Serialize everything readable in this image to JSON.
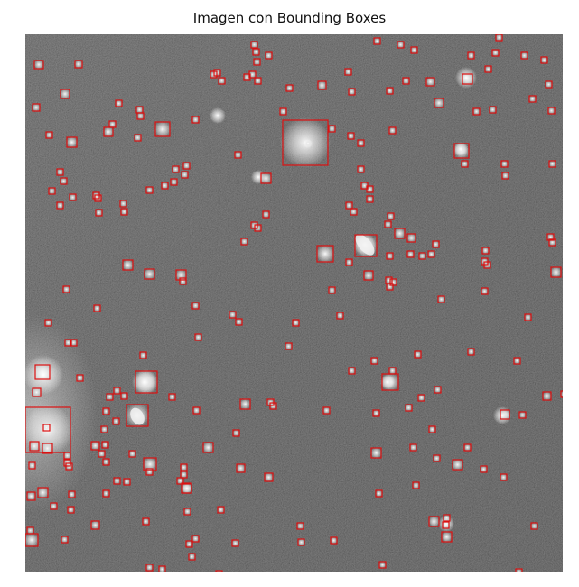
{
  "title": "Imagen con Bounding Boxes",
  "colors": {
    "box_stroke": "#dd1111",
    "sky_dark": "#2f2f2f",
    "sky_light": "#5a5a5a"
  },
  "content": {
    "kind": "astronomical grayscale star field",
    "box_count_approx": 170
  }
}
